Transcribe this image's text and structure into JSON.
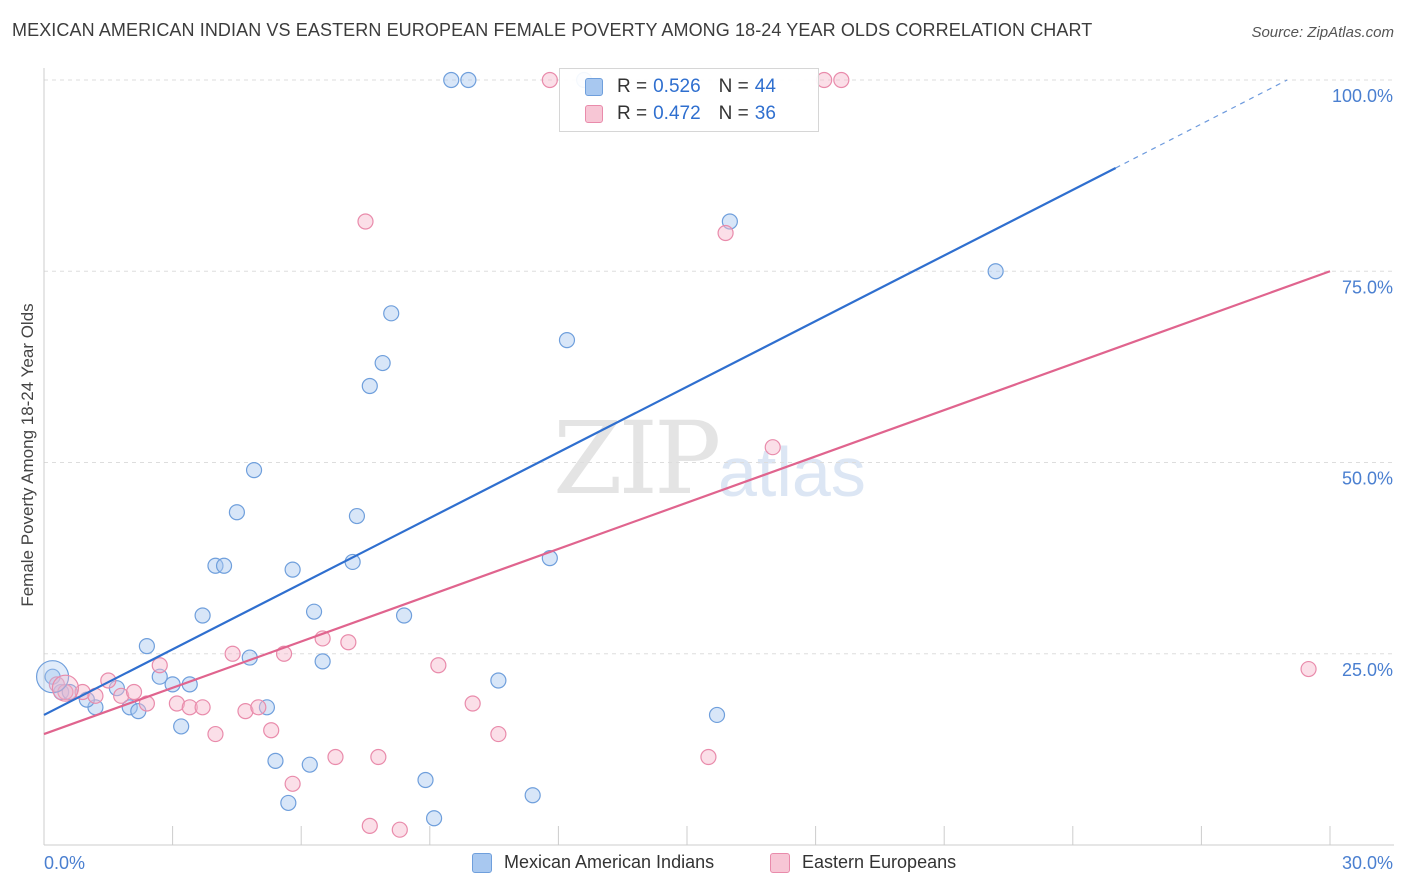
{
  "title": "MEXICAN AMERICAN INDIAN VS EASTERN EUROPEAN FEMALE POVERTY AMONG 18-24 YEAR OLDS CORRELATION CHART",
  "source": "Source: ZipAtlas.com",
  "watermark": {
    "zip": "ZIP",
    "atlas": "atlas"
  },
  "legend": {
    "rows": [
      {
        "r_label": "R =",
        "r_value": "0.526",
        "n_label": "N =",
        "n_value": "44"
      },
      {
        "r_label": "R =",
        "r_value": "0.472",
        "n_label": "N =",
        "n_value": "36"
      }
    ]
  },
  "colors": {
    "blue_fill": "#a8c8f0",
    "blue_stroke": "#6f9fdc",
    "blue_line": "#2f6fcf",
    "pink_fill": "#f7b8cb",
    "pink_stroke": "#e98bab",
    "pink_line": "#e0648e",
    "grid": "#dddddd",
    "tick_label": "#4a7fd0"
  },
  "chart_data": {
    "type": "scatter",
    "title": "MEXICAN AMERICAN INDIAN VS EASTERN EUROPEAN FEMALE POVERTY AMONG 18-24 YEAR OLDS CORRELATION CHART",
    "xlabel": "",
    "ylabel": "Female Poverty Among 18-24 Year Olds",
    "xlim": [
      0,
      30
    ],
    "ylim": [
      0,
      100
    ],
    "x_tick_labels": [
      "0.0%",
      "30.0%"
    ],
    "y_tick_labels": [
      "100.0%",
      "75.0%",
      "50.0%",
      "25.0%"
    ],
    "y_ticks": [
      100,
      75,
      50,
      25
    ],
    "grid": true,
    "legend_position": "bottom",
    "series": [
      {
        "name": "Mexican American Indians",
        "r": 0.526,
        "n": 44,
        "trend": {
          "x0": 0,
          "y0": 17,
          "x1": 25,
          "y1": 88.5,
          "dashed_to_x": 29,
          "dashed_to_y": 100
        },
        "points": [
          [
            0.2,
            22
          ],
          [
            0.4,
            20
          ],
          [
            0.6,
            20
          ],
          [
            1.2,
            18
          ],
          [
            1.0,
            19
          ],
          [
            1.7,
            20.5
          ],
          [
            2.0,
            18
          ],
          [
            2.2,
            17.5
          ],
          [
            2.4,
            26
          ],
          [
            2.7,
            22
          ],
          [
            3.0,
            21
          ],
          [
            3.2,
            15.5
          ],
          [
            3.4,
            21
          ],
          [
            3.7,
            30
          ],
          [
            4.0,
            36.5
          ],
          [
            4.2,
            36.5
          ],
          [
            4.5,
            43.5
          ],
          [
            4.8,
            24.5
          ],
          [
            4.9,
            49
          ],
          [
            5.2,
            18
          ],
          [
            5.4,
            11
          ],
          [
            5.7,
            5.5
          ],
          [
            5.8,
            36
          ],
          [
            6.2,
            10.5
          ],
          [
            6.3,
            30.5
          ],
          [
            6.5,
            24
          ],
          [
            7.2,
            37
          ],
          [
            7.3,
            43
          ],
          [
            7.6,
            60
          ],
          [
            7.9,
            63
          ],
          [
            8.1,
            69.5
          ],
          [
            8.4,
            30
          ],
          [
            8.9,
            8.5
          ],
          [
            9.1,
            3.5
          ],
          [
            9.5,
            100
          ],
          [
            9.9,
            100
          ],
          [
            10.6,
            21.5
          ],
          [
            11.4,
            6.5
          ],
          [
            11.8,
            37.5
          ],
          [
            12.2,
            66
          ],
          [
            12.6,
            100
          ],
          [
            15.7,
            17
          ],
          [
            16.0,
            81.5
          ],
          [
            22.2,
            75
          ]
        ]
      },
      {
        "name": "Eastern Europeans",
        "r": 0.472,
        "n": 36,
        "trend": {
          "x0": 0,
          "y0": 14.5,
          "x1": 30,
          "y1": 75
        },
        "points": [
          [
            0.3,
            21
          ],
          [
            0.5,
            20
          ],
          [
            0.9,
            20
          ],
          [
            1.2,
            19.5
          ],
          [
            1.5,
            21.5
          ],
          [
            1.8,
            19.5
          ],
          [
            2.1,
            20
          ],
          [
            2.4,
            18.5
          ],
          [
            2.7,
            23.5
          ],
          [
            3.1,
            18.5
          ],
          [
            3.4,
            18
          ],
          [
            3.7,
            18
          ],
          [
            4.0,
            14.5
          ],
          [
            4.4,
            25
          ],
          [
            4.7,
            17.5
          ],
          [
            5.0,
            18
          ],
          [
            5.3,
            15
          ],
          [
            5.6,
            25
          ],
          [
            5.8,
            8
          ],
          [
            6.5,
            27
          ],
          [
            6.8,
            11.5
          ],
          [
            7.1,
            26.5
          ],
          [
            7.5,
            81.5
          ],
          [
            7.8,
            11.5
          ],
          [
            7.6,
            2.5
          ],
          [
            8.3,
            2.0
          ],
          [
            9.2,
            23.5
          ],
          [
            10.0,
            18.5
          ],
          [
            10.6,
            14.5
          ],
          [
            11.8,
            100
          ],
          [
            15.5,
            11.5
          ],
          [
            15.9,
            80
          ],
          [
            17.0,
            52
          ],
          [
            18.2,
            100
          ],
          [
            18.6,
            100
          ],
          [
            29.5,
            23
          ]
        ]
      }
    ]
  }
}
